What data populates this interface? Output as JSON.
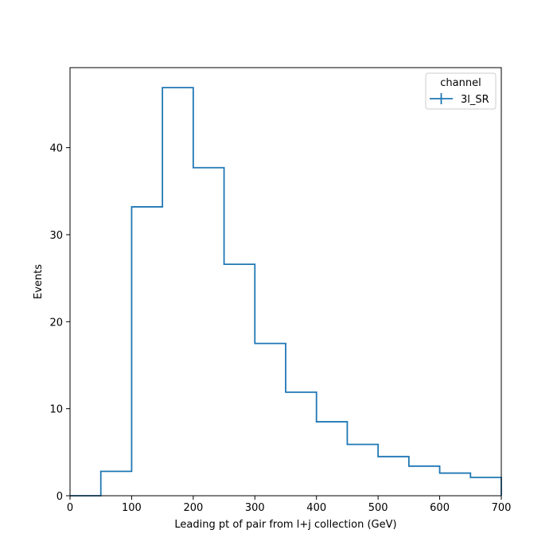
{
  "chart_data": {
    "type": "histogram",
    "xlabel": "Leading pt of pair from l+j collection (GeV)",
    "ylabel": "Events",
    "xlim": [
      0,
      700
    ],
    "ylim": [
      0,
      49.2
    ],
    "xticks": [
      0,
      100,
      200,
      300,
      400,
      500,
      600,
      700
    ],
    "yticks": [
      0,
      10,
      20,
      30,
      40
    ],
    "legend": {
      "title": "channel",
      "placement": "top-right"
    },
    "bin_edges": [
      0,
      50,
      100,
      150,
      200,
      250,
      300,
      350,
      400,
      450,
      500,
      550,
      600,
      650,
      700
    ],
    "series": [
      {
        "name": "3l_SR",
        "color": "#1f77b4",
        "values": [
          0.0,
          2.8,
          33.2,
          46.9,
          37.7,
          26.6,
          17.5,
          11.9,
          8.5,
          5.9,
          4.5,
          3.4,
          2.6,
          2.1
        ]
      }
    ],
    "grid": false
  }
}
